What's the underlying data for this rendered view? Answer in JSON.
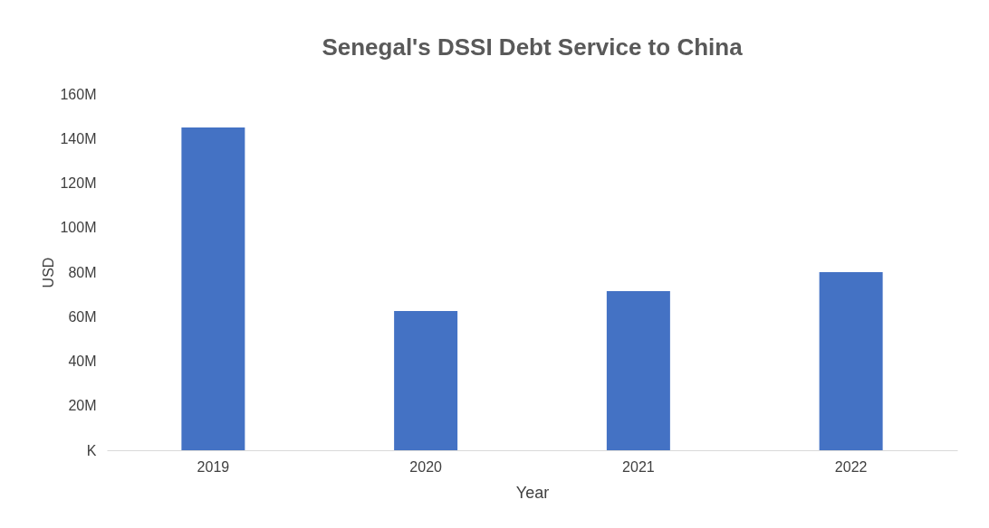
{
  "chart_data": {
    "type": "bar",
    "title": "Senegal's DSSI Debt Service to China",
    "xlabel": "Year",
    "ylabel": "USD",
    "categories": [
      "2019",
      "2020",
      "2021",
      "2022"
    ],
    "series": [
      {
        "color": "#4472c4",
        "values": [
          145000000,
          62500000,
          71500000,
          80000000
        ]
      }
    ],
    "ylim": [
      0,
      160000000
    ],
    "yticks": [
      {
        "value": 0,
        "label": "K"
      },
      {
        "value": 20000000,
        "label": "20M"
      },
      {
        "value": 40000000,
        "label": "40M"
      },
      {
        "value": 60000000,
        "label": "60M"
      },
      {
        "value": 80000000,
        "label": "80M"
      },
      {
        "value": 100000000,
        "label": "100M"
      },
      {
        "value": 120000000,
        "label": "120M"
      },
      {
        "value": 140000000,
        "label": "140M"
      },
      {
        "value": 160000000,
        "label": "160M"
      }
    ],
    "grid": false
  }
}
